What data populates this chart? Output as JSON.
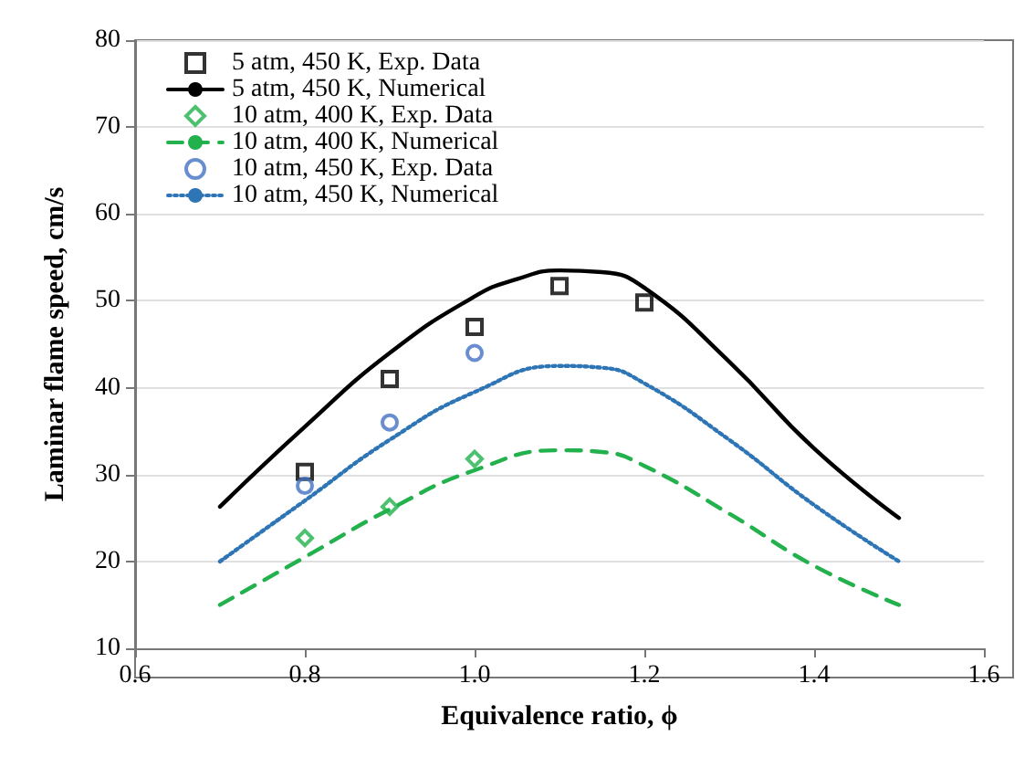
{
  "chart_data": {
    "type": "line",
    "xlabel": "Equivalence ratio, ϕ",
    "ylabel": "Laminar flame speed, cm/s",
    "xlim": [
      0.6,
      1.6
    ],
    "xticks": [
      0.6,
      0.8,
      {
        "value": 1,
        "label": "1.0"
      },
      1.2,
      1.4,
      1.6
    ],
    "ylim": [
      10,
      80
    ],
    "yticks": [
      10,
      20,
      30,
      40,
      50,
      60,
      70,
      80
    ],
    "grid": "y",
    "legend": "top left",
    "series": [
      {
        "name": "5 atm, 450 K, Exp. Data",
        "type": "scatter",
        "marker": "square",
        "color": "#000000",
        "x": [
          0.8,
          0.9,
          1.0,
          1.1,
          1.2
        ],
        "values": [
          30.3,
          41,
          47,
          51.7,
          49.8
        ]
      },
      {
        "name": "5 atm, 450 K, Numerical",
        "type": "line",
        "line_style": "solid",
        "color": "#000000",
        "x": [
          0.7,
          0.8,
          0.9,
          1.0,
          1.05,
          1.1,
          1.15,
          1.2,
          1.3,
          1.4,
          1.5
        ],
        "values": [
          26.3,
          35.5,
          44,
          50.5,
          52.5,
          53.5,
          53.3,
          51.5,
          43,
          33,
          25
        ]
      },
      {
        "name": "10 atm, 400 K, Exp. Data",
        "type": "scatter",
        "marker": "diamond",
        "color": "#22b14c",
        "x": [
          0.8,
          0.9,
          1.0
        ],
        "values": [
          22.7,
          26.3,
          31.8
        ]
      },
      {
        "name": "10 atm, 400 K, Numerical",
        "type": "line",
        "line_style": "dashed",
        "color": "#22b14c",
        "x": [
          0.7,
          0.8,
          0.9,
          1.0,
          1.1,
          1.15,
          1.2,
          1.3,
          1.4,
          1.5
        ],
        "values": [
          15,
          20.5,
          26,
          30.5,
          32.8,
          32.6,
          31,
          25.5,
          19.5,
          15
        ]
      },
      {
        "name": "10 atm, 450 K, Exp. Data",
        "type": "scatter",
        "marker": "circle",
        "color": "#4472c4",
        "x": [
          0.8,
          0.9,
          1.0
        ],
        "values": [
          28.7,
          36,
          44
        ]
      },
      {
        "name": "10 atm, 450 K, Numerical",
        "line_style": "dotted",
        "color": "#2e75b6",
        "x": [
          0.7,
          0.8,
          0.9,
          1.0,
          1.1,
          1.15,
          1.2,
          1.3,
          1.4,
          1.5
        ],
        "values": [
          20,
          27,
          34,
          39.5,
          42.5,
          42.3,
          40.5,
          34,
          26.5,
          20
        ]
      }
    ]
  }
}
